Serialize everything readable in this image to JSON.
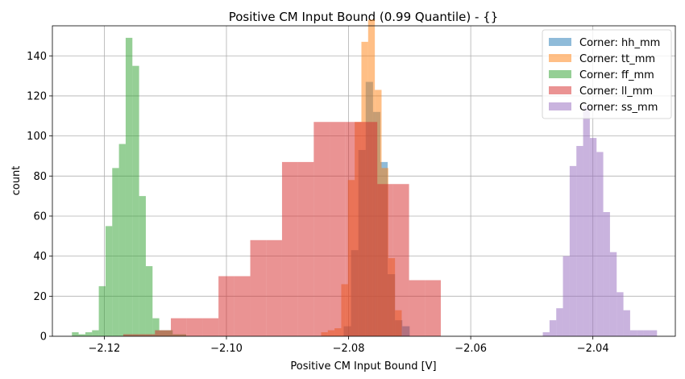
{
  "chart_data": {
    "type": "histogram",
    "title": "Positive CM Input Bound (0.99 Quantile) - {}",
    "xlabel": "Positive CM Input Bound [V]",
    "ylabel": "count",
    "xlim": [
      -2.1285,
      -2.0265
    ],
    "ylim": [
      0,
      155
    ],
    "xticks": [
      -2.12,
      -2.1,
      -2.08,
      -2.06,
      -2.04
    ],
    "xtick_labels": [
      "−2.12",
      "−2.10",
      "−2.08",
      "−2.06",
      "−2.04"
    ],
    "yticks": [
      0,
      20,
      40,
      60,
      80,
      100,
      120,
      140
    ],
    "ytick_labels": [
      "0",
      "20",
      "40",
      "60",
      "80",
      "100",
      "120",
      "140"
    ],
    "grid": true,
    "legend_position": "top-right",
    "series": [
      {
        "name": "Corner: hh_mm",
        "color": "#1f77b4",
        "edges": [
          -2.0808,
          -2.0796,
          -2.0784,
          -2.0772,
          -2.076,
          -2.0748,
          -2.0736,
          -2.0724,
          -2.0712,
          -2.07
        ],
        "counts": [
          5,
          43,
          93,
          127,
          112,
          87,
          31,
          8,
          5
        ]
      },
      {
        "name": "Corner: tt_mm",
        "color": "#ff7f0e",
        "edges": [
          -2.0845,
          -2.0834,
          -2.0823,
          -2.0812,
          -2.0801,
          -2.079,
          -2.0779,
          -2.0768,
          -2.0757,
          -2.0746,
          -2.0735,
          -2.0724,
          -2.0713
        ],
        "counts": [
          2,
          3,
          4,
          26,
          78,
          107,
          147,
          158,
          123,
          84,
          39,
          13
        ]
      },
      {
        "name": "Corner: ff_mm",
        "color": "#2ca02c",
        "edges": [
          -2.1253,
          -2.1242,
          -2.1231,
          -2.122,
          -2.1209,
          -2.1198,
          -2.1187,
          -2.1176,
          -2.1165,
          -2.1154,
          -2.1143,
          -2.1132,
          -2.1121,
          -2.111,
          -2.1099,
          -2.1088,
          -2.1077,
          -2.1066
        ],
        "counts": [
          2,
          1,
          2,
          3,
          25,
          55,
          84,
          96,
          149,
          135,
          70,
          35,
          9,
          3,
          3,
          1,
          1
        ]
      },
      {
        "name": "Corner: ll_mm",
        "color": "#d62728",
        "edges": [
          -2.1195,
          -2.1169,
          -2.1143,
          -2.1117,
          -2.1091,
          -2.1065,
          -2.1039,
          -2.1013,
          -2.0987,
          -2.0961,
          -2.0935,
          -2.0909,
          -2.0883,
          -2.0857,
          -2.0831,
          -2.0805,
          -2.0779,
          -2.0753,
          -2.0727,
          -2.0701,
          -2.0675,
          -2.0649
        ],
        "counts": [
          0,
          1,
          1,
          3,
          9,
          9,
          9,
          30,
          30,
          48,
          48,
          87,
          87,
          107,
          107,
          107,
          107,
          76,
          76,
          28,
          28
        ]
      },
      {
        "name": "Corner: ss_mm",
        "color": "#9467bd",
        "edges": [
          -2.0482,
          -2.0471,
          -2.046,
          -2.0449,
          -2.0438,
          -2.0427,
          -2.0416,
          -2.0405,
          -2.0394,
          -2.0383,
          -2.0372,
          -2.0361,
          -2.035,
          -2.0339,
          -2.0328,
          -2.0317,
          -2.0306,
          -2.0295
        ],
        "counts": [
          2,
          8,
          14,
          40,
          85,
          95,
          115,
          99,
          92,
          62,
          42,
          22,
          13,
          3,
          3,
          3,
          3
        ]
      }
    ]
  }
}
